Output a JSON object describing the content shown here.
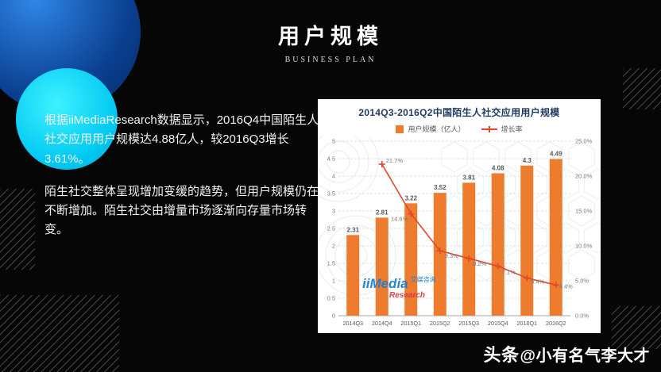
{
  "slide": {
    "title": "用户规模",
    "subtitle": "BUSINESS PLAN",
    "paragraphs": [
      "根据iiMediaResearch数据显示，2016Q4中国陌生人社交应用用户规模达4.88亿人，较2016Q3增长3.61%。",
      "陌生社交整体呈现增加变缓的趋势，但用户规模仍在不断增加。陌生社交由增量市场逐渐向存量市场转变。"
    ],
    "credit": {
      "brand": "头条",
      "handle": "@小有名气李大才"
    }
  },
  "chart_data": {
    "type": "bar",
    "title": "2014Q3-2016Q2中国陌生人社交应用用户规模",
    "categories": [
      "2014Q3",
      "2014Q4",
      "2015Q1",
      "2015Q2",
      "2015Q3",
      "2015Q4",
      "2016Q1",
      "2016Q2"
    ],
    "series": [
      {
        "name": "用户规模（亿人）",
        "type": "bar",
        "color": "#ED7C2F",
        "values": [
          2.31,
          2.81,
          3.22,
          3.52,
          3.81,
          4.08,
          4.3,
          4.49
        ],
        "labels": [
          "2.31",
          "2.81",
          "3.22",
          "3.52",
          "3.81",
          "4.08",
          "4.3",
          "4.49"
        ]
      },
      {
        "name": "增长率",
        "type": "line",
        "color": "#E0482A",
        "values": [
          null,
          21.7,
          14.6,
          9.3,
          8.2,
          7.1,
          5.4,
          4.4
        ],
        "labels": [
          "",
          "21.7%",
          "14.6%",
          "9.3%",
          "8.2%",
          "7.1%",
          "5.4%",
          "4.4%"
        ]
      }
    ],
    "left_axis": {
      "min": 0,
      "max": 5,
      "step": 0.5,
      "ticks": [
        "0",
        "0.5",
        "1",
        "1.5",
        "2",
        "2.5",
        "3",
        "3.5",
        "4",
        "4.5",
        "5"
      ]
    },
    "right_axis": {
      "min": 0,
      "max": 25,
      "step": 5,
      "ticks": [
        "0.0%",
        "5.0%",
        "10.0%",
        "15.0%",
        "20.0%",
        "25.0%"
      ]
    },
    "legend_position": "top",
    "grid": true,
    "watermark": {
      "line1": "iiMedia",
      "line2": "Research",
      "cn": "艾媒咨询"
    }
  }
}
